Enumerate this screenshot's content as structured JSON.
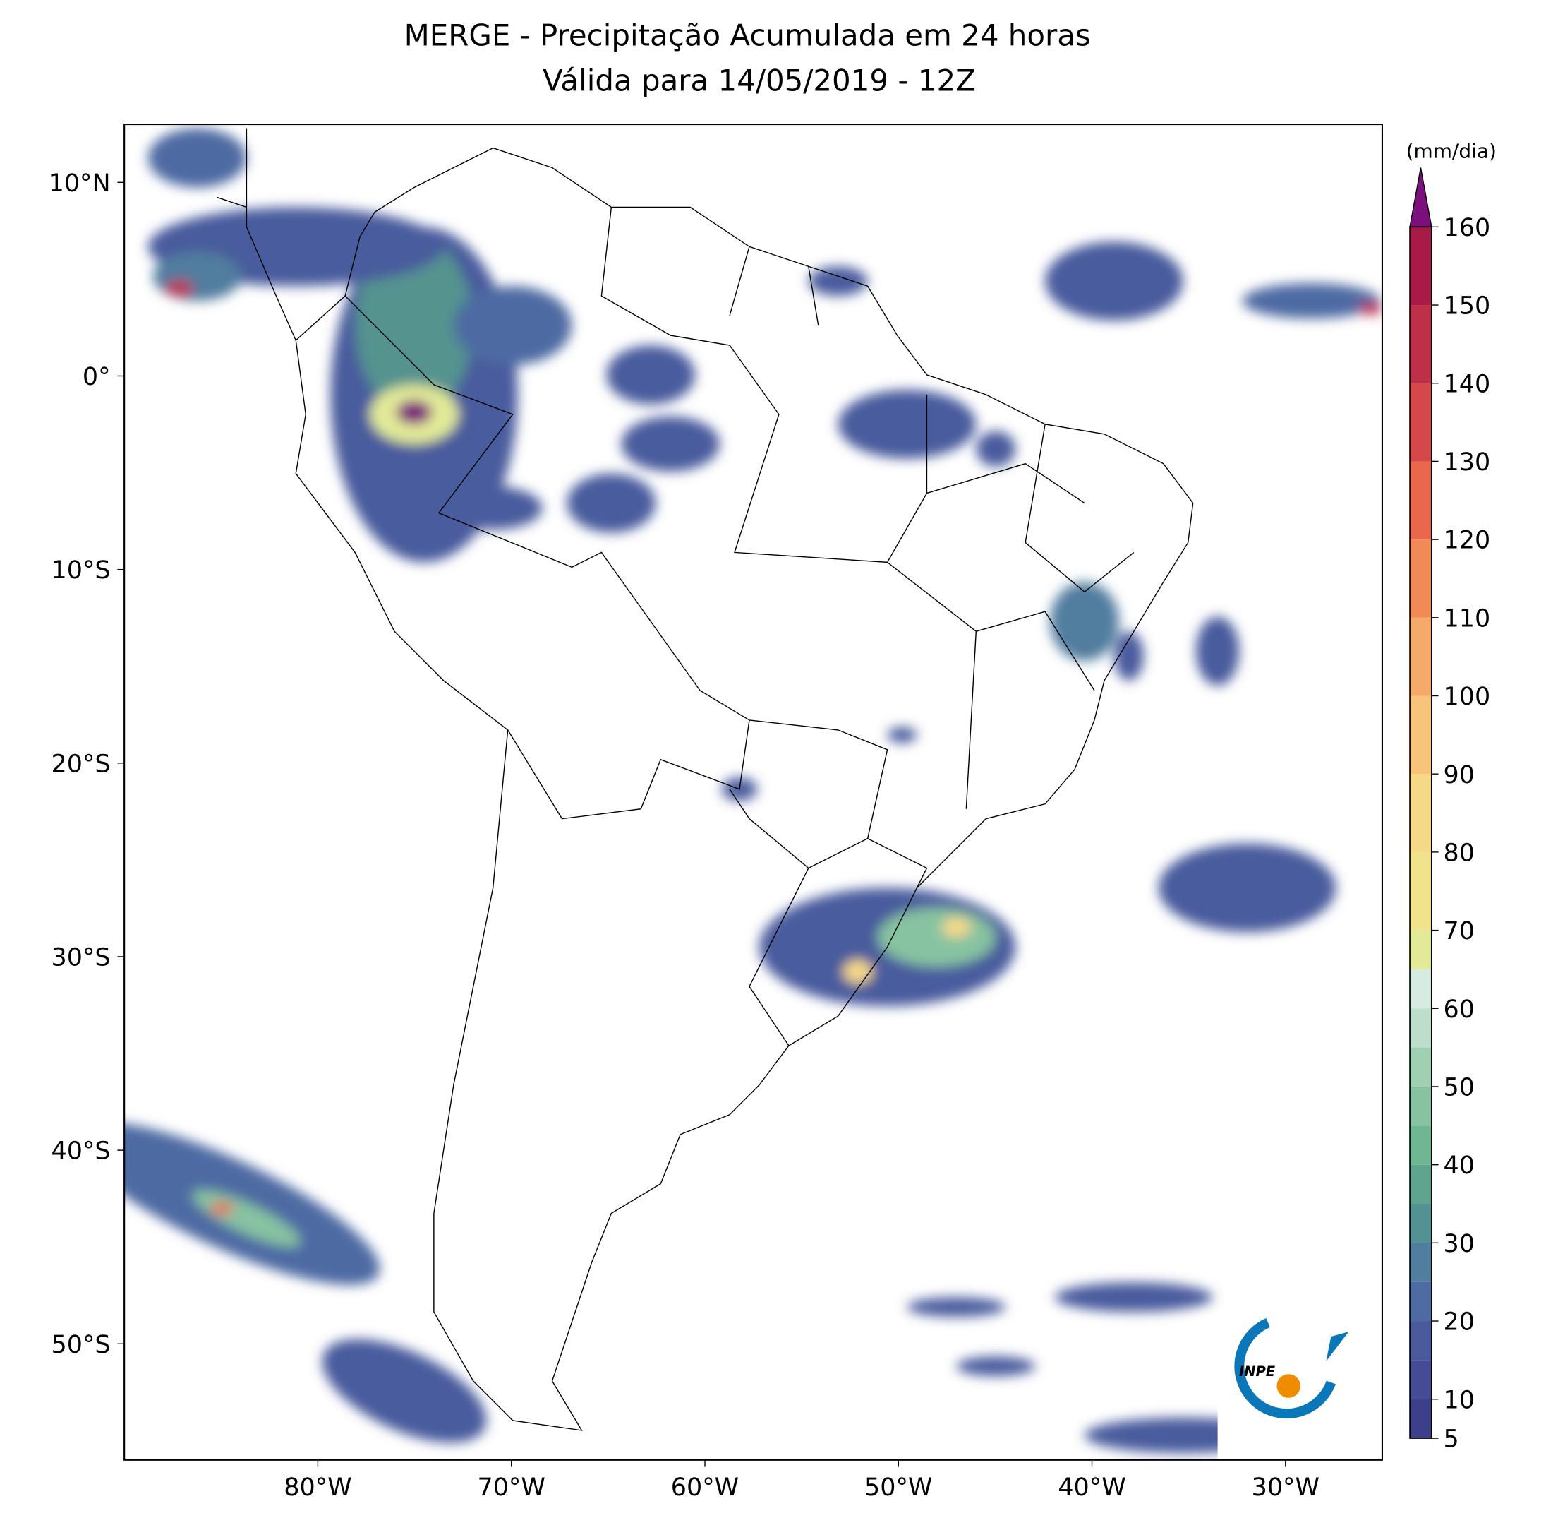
{
  "chart_data": {
    "type": "map",
    "title": "MERGE - Precipitação Acumulada em 24 horas",
    "subtitle": "Válida para 14/05/2019 - 12Z",
    "xlim": [
      -90,
      -25
    ],
    "ylim": [
      -56,
      13
    ],
    "xticks": [
      {
        "value": -80,
        "label": "80°W"
      },
      {
        "value": -70,
        "label": "70°W"
      },
      {
        "value": -60,
        "label": "60°W"
      },
      {
        "value": -50,
        "label": "50°W"
      },
      {
        "value": -40,
        "label": "40°W"
      },
      {
        "value": -30,
        "label": "30°W"
      }
    ],
    "yticks": [
      {
        "value": 10,
        "label": "10°N"
      },
      {
        "value": 0,
        "label": "0°"
      },
      {
        "value": -10,
        "label": "10°S"
      },
      {
        "value": -20,
        "label": "20°S"
      },
      {
        "value": -30,
        "label": "30°S"
      },
      {
        "value": -40,
        "label": "40°S"
      },
      {
        "value": -50,
        "label": "50°S"
      }
    ],
    "colorbar": {
      "label": "(mm/dia)",
      "lim": [
        5,
        160
      ],
      "ticks": [
        5,
        10,
        20,
        30,
        40,
        50,
        60,
        70,
        80,
        90,
        100,
        110,
        120,
        130,
        140,
        150,
        160
      ],
      "levels": [
        5,
        10,
        15,
        20,
        25,
        30,
        35,
        40,
        45,
        50,
        55,
        60,
        65,
        70,
        80,
        90,
        100,
        110,
        120,
        130,
        140,
        150,
        160
      ],
      "colors": [
        "#3e3f8b",
        "#454c95",
        "#4a5b9d",
        "#4e6ba3",
        "#517d9f",
        "#549192",
        "#5ea48e",
        "#6fb693",
        "#87c3a1",
        "#a0d0b2",
        "#bcdeca",
        "#d6ebe2",
        "#e2ea98",
        "#efe38b",
        "#f6d987",
        "#f7c47a",
        "#f5aa6a",
        "#f28a58",
        "#e9684c",
        "#d6474a",
        "#c02f48",
        "#a81a47"
      ],
      "extend_color": "#7b0f7d"
    },
    "logo_text": "INPE"
  }
}
